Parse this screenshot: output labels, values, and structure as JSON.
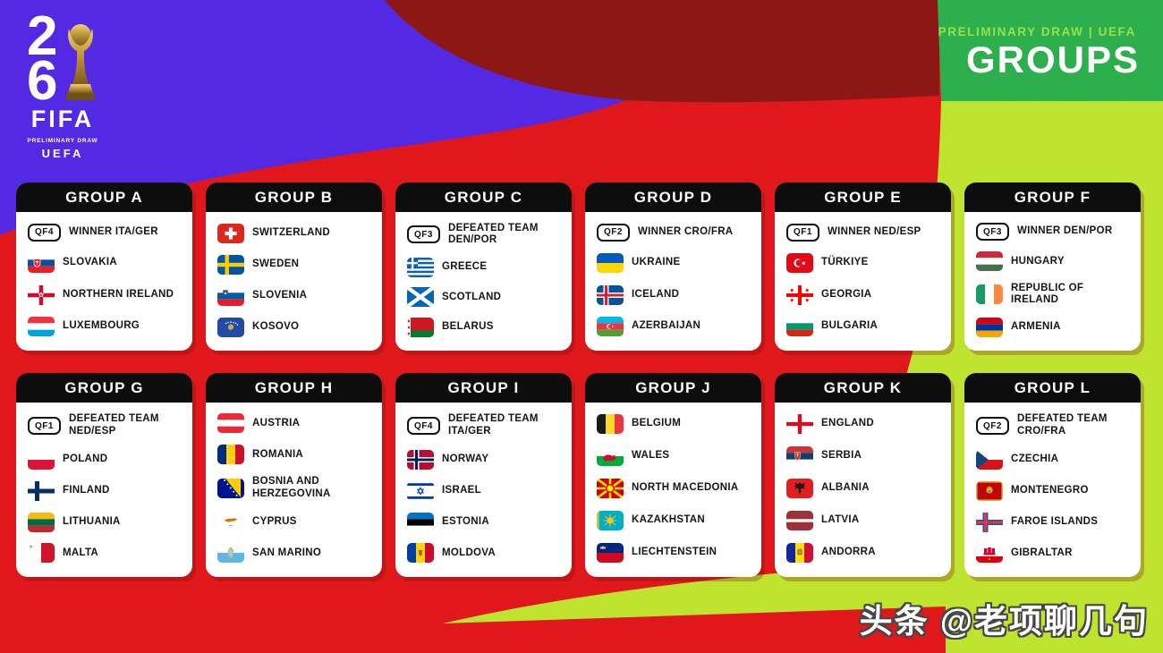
{
  "logo": {
    "digit_top": "2",
    "digit_bottom": "6",
    "wordmark": "FIFA",
    "tagline": "PRELIMINARY DRAW",
    "org": "UEFA"
  },
  "header": {
    "kicker": "PRELIMINARY DRAW | UEFA",
    "title": "GROUPS"
  },
  "watermark": {
    "text": "头条 @老项聊几句"
  },
  "colors": {
    "red": "#e0181b",
    "maroon": "#8c1714",
    "purple": "#5429e3",
    "green": "#2daf4d",
    "lime": "#bfe42f",
    "card_header_black": "#0d0d0d",
    "kicker_green": "#97e14b"
  },
  "groups": [
    {
      "name": "GROUP A",
      "teams": [
        {
          "badge": "QF4",
          "label": "WINNER ITA/GER"
        },
        {
          "flag": "slovakia",
          "label": "SLOVAKIA"
        },
        {
          "flag": "northern-ireland",
          "label": "NORTHERN IRELAND"
        },
        {
          "flag": "luxembourg",
          "label": "LUXEMBOURG"
        }
      ]
    },
    {
      "name": "GROUP B",
      "teams": [
        {
          "flag": "switzerland",
          "label": "SWITZERLAND"
        },
        {
          "flag": "sweden",
          "label": "SWEDEN"
        },
        {
          "flag": "slovenia",
          "label": "SLOVENIA"
        },
        {
          "flag": "kosovo",
          "label": "KOSOVO"
        }
      ]
    },
    {
      "name": "GROUP C",
      "teams": [
        {
          "badge": "QF3",
          "label": "DEFEATED TEAM DEN/POR"
        },
        {
          "flag": "greece",
          "label": "GREECE"
        },
        {
          "flag": "scotland",
          "label": "SCOTLAND"
        },
        {
          "flag": "belarus",
          "label": "BELARUS"
        }
      ]
    },
    {
      "name": "GROUP D",
      "teams": [
        {
          "badge": "QF2",
          "label": "WINNER CRO/FRA"
        },
        {
          "flag": "ukraine",
          "label": "UKRAINE"
        },
        {
          "flag": "iceland",
          "label": "ICELAND"
        },
        {
          "flag": "azerbaijan",
          "label": "AZERBAIJAN"
        }
      ]
    },
    {
      "name": "GROUP E",
      "teams": [
        {
          "badge": "QF1",
          "label": "WINNER NED/ESP"
        },
        {
          "flag": "turkiye",
          "label": "TÜRKIYE"
        },
        {
          "flag": "georgia",
          "label": "GEORGIA"
        },
        {
          "flag": "bulgaria",
          "label": "BULGARIA"
        }
      ]
    },
    {
      "name": "GROUP F",
      "teams": [
        {
          "badge": "QF3",
          "label": "WINNER DEN/POR"
        },
        {
          "flag": "hungary",
          "label": "HUNGARY"
        },
        {
          "flag": "ireland",
          "label": "REPUBLIC OF IRELAND"
        },
        {
          "flag": "armenia",
          "label": "ARMENIA"
        }
      ]
    },
    {
      "name": "GROUP G",
      "teams": [
        {
          "badge": "QF1",
          "label": "DEFEATED TEAM NED/ESP"
        },
        {
          "flag": "poland",
          "label": "POLAND"
        },
        {
          "flag": "finland",
          "label": "FINLAND"
        },
        {
          "flag": "lithuania",
          "label": "LITHUANIA"
        },
        {
          "flag": "malta",
          "label": "MALTA"
        }
      ]
    },
    {
      "name": "GROUP H",
      "teams": [
        {
          "flag": "austria",
          "label": "AUSTRIA"
        },
        {
          "flag": "romania",
          "label": "ROMANIA"
        },
        {
          "flag": "bosnia-herzegovina",
          "label": "BOSNIA AND HERZEGOVINA"
        },
        {
          "flag": "cyprus",
          "label": "CYPRUS"
        },
        {
          "flag": "san-marino",
          "label": "SAN MARINO"
        }
      ]
    },
    {
      "name": "GROUP I",
      "teams": [
        {
          "badge": "QF4",
          "label": "DEFEATED TEAM ITA/GER"
        },
        {
          "flag": "norway",
          "label": "NORWAY"
        },
        {
          "flag": "israel",
          "label": "ISRAEL"
        },
        {
          "flag": "estonia",
          "label": "ESTONIA"
        },
        {
          "flag": "moldova",
          "label": "MOLDOVA"
        }
      ]
    },
    {
      "name": "GROUP J",
      "teams": [
        {
          "flag": "belgium",
          "label": "BELGIUM"
        },
        {
          "flag": "wales",
          "label": "WALES"
        },
        {
          "flag": "north-macedonia",
          "label": "NORTH MACEDONIA"
        },
        {
          "flag": "kazakhstan",
          "label": "KAZAKHSTAN"
        },
        {
          "flag": "liechtenstein",
          "label": "LIECHTENSTEIN"
        }
      ]
    },
    {
      "name": "GROUP K",
      "teams": [
        {
          "flag": "england",
          "label": "ENGLAND"
        },
        {
          "flag": "serbia",
          "label": "SERBIA"
        },
        {
          "flag": "albania",
          "label": "ALBANIA"
        },
        {
          "flag": "latvia",
          "label": "LATVIA"
        },
        {
          "flag": "andorra",
          "label": "ANDORRA"
        }
      ]
    },
    {
      "name": "GROUP L",
      "teams": [
        {
          "badge": "QF2",
          "label": "DEFEATED TEAM CRO/FRA"
        },
        {
          "flag": "czechia",
          "label": "CZECHIA"
        },
        {
          "flag": "montenegro",
          "label": "MONTENEGRO"
        },
        {
          "flag": "faroe-islands",
          "label": "FAROE ISLANDS"
        },
        {
          "flag": "gibraltar",
          "label": "GIBRALTAR"
        }
      ]
    }
  ]
}
